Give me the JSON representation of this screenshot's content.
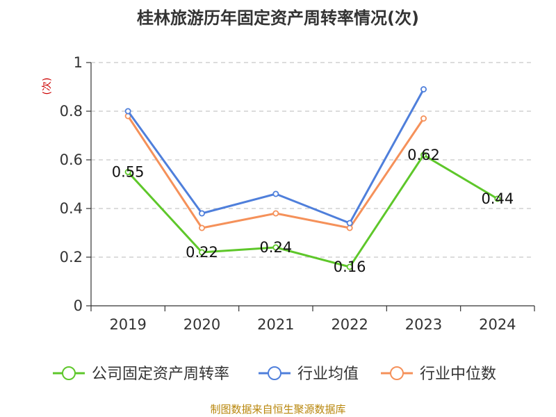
{
  "chart_data": {
    "type": "line",
    "title": "桂林旅游历年固定资产周转率情况(次)",
    "ylabel": "(次)",
    "xlabel": "",
    "categories": [
      "2019",
      "2020",
      "2021",
      "2022",
      "2023",
      "2024"
    ],
    "ylim": [
      0,
      1
    ],
    "yticks": [
      0,
      0.2,
      0.4,
      0.6,
      0.8,
      1
    ],
    "ytick_labels": [
      "0",
      "0.2",
      "0.4",
      "0.6",
      "0.8",
      "1"
    ],
    "grid": true,
    "legend_position": "bottom",
    "series": [
      {
        "name": "公司固定资产周转率",
        "color": "#5ec72a",
        "values": [
          0.55,
          0.22,
          0.24,
          0.16,
          0.62,
          0.44
        ],
        "data_labels": [
          "0.55",
          "0.22",
          "0.24",
          "0.16",
          "0.62",
          "0.44"
        ]
      },
      {
        "name": "行业均值",
        "color": "#4f7fdb",
        "values": [
          0.8,
          0.38,
          0.46,
          0.34,
          0.89,
          null
        ]
      },
      {
        "name": "行业中位数",
        "color": "#f5915a",
        "values": [
          0.78,
          0.32,
          0.38,
          0.32,
          0.77,
          null
        ]
      }
    ],
    "source": "制图数据来自恒生聚源数据库"
  }
}
